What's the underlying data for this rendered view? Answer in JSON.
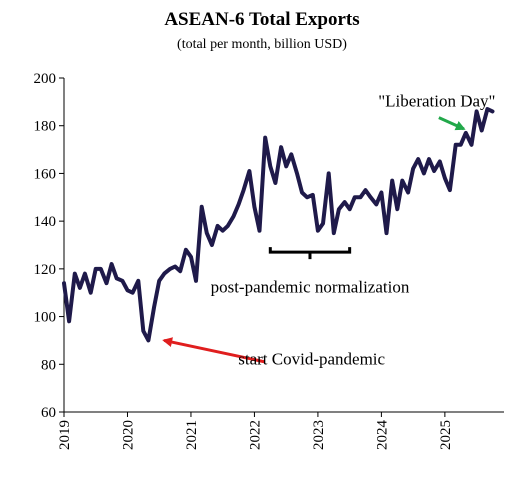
{
  "chart_data": {
    "type": "line",
    "title": "ASEAN-6 Total Exports",
    "subtitle": "(total per month, billion USD)",
    "xlabel": "",
    "ylabel": "",
    "ylim": [
      60,
      200
    ],
    "xlim": [
      2019.0,
      2025.9
    ],
    "grid": false,
    "y_ticks": [
      60,
      80,
      100,
      120,
      140,
      160,
      180,
      200
    ],
    "x_ticks": [
      {
        "label": "2019",
        "value": 2019
      },
      {
        "label": "2020",
        "value": 2020
      },
      {
        "label": "2021",
        "value": 2021
      },
      {
        "label": "2022",
        "value": 2022
      },
      {
        "label": "2023",
        "value": 2023
      },
      {
        "label": "2024",
        "value": 2024
      },
      {
        "label": "2025",
        "value": 2025
      }
    ],
    "series": [
      {
        "color": "#1f1a4a",
        "x": [
          2019.0,
          2019.08,
          2019.17,
          2019.25,
          2019.33,
          2019.42,
          2019.5,
          2019.58,
          2019.67,
          2019.75,
          2019.83,
          2019.92,
          2020.0,
          2020.08,
          2020.17,
          2020.25,
          2020.33,
          2020.42,
          2020.5,
          2020.58,
          2020.67,
          2020.75,
          2020.83,
          2020.92,
          2021.0,
          2021.08,
          2021.17,
          2021.25,
          2021.33,
          2021.42,
          2021.5,
          2021.58,
          2021.67,
          2021.75,
          2021.83,
          2021.92,
          2022.0,
          2022.08,
          2022.17,
          2022.25,
          2022.33,
          2022.42,
          2022.5,
          2022.58,
          2022.67,
          2022.75,
          2022.83,
          2022.92,
          2023.0,
          2023.08,
          2023.17,
          2023.25,
          2023.33,
          2023.42,
          2023.5,
          2023.58,
          2023.67,
          2023.75,
          2023.83,
          2023.92,
          2024.0,
          2024.08,
          2024.17,
          2024.25,
          2024.33,
          2024.42,
          2024.5,
          2024.58,
          2024.67,
          2024.75,
          2024.83,
          2024.92,
          2025.0,
          2025.08,
          2025.17,
          2025.25,
          2025.33,
          2025.42,
          2025.5,
          2025.58,
          2025.67,
          2025.75
        ],
        "values": [
          114,
          98,
          118,
          112,
          118,
          110,
          120,
          120,
          114,
          122,
          116,
          115,
          111,
          110,
          115,
          94,
          90,
          104,
          115,
          118,
          120,
          121,
          119,
          128,
          125,
          115,
          146,
          135,
          130,
          138,
          136,
          138,
          142,
          147,
          153,
          161,
          146,
          136,
          175,
          163,
          156,
          171,
          163,
          168,
          160,
          152,
          150,
          151,
          136,
          139,
          160,
          135,
          145,
          148,
          145,
          150,
          150,
          153,
          150,
          147,
          152,
          135,
          157,
          145,
          157,
          152,
          162,
          166,
          160,
          166,
          161,
          165,
          158,
          153,
          172,
          172,
          177,
          172,
          186,
          178,
          187,
          186
        ]
      }
    ],
    "annotations": [
      {
        "text": "\"Liberation Day\"",
        "x": 2025.0,
        "y": 188,
        "arrow_to": [
          2025.33,
          177
        ],
        "arrow_color": "#22a84a"
      },
      {
        "text": "start Covid-pandemic",
        "x": 2020.8,
        "y": 84,
        "arrow_to": [
          2020.42,
          90
        ],
        "arrow_color": "#e01e1e"
      },
      {
        "text": "post-pandemic normalization",
        "bracket_x": [
          2022.25,
          2023.5
        ],
        "bracket_y": 127,
        "text_y": 111
      }
    ]
  }
}
